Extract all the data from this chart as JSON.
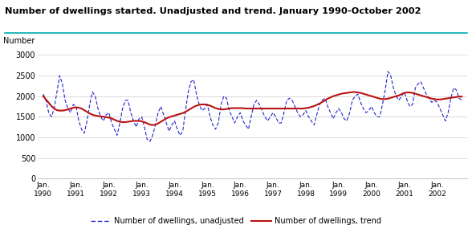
{
  "title": "Number of dwellings started. Unadjusted and trend. January 1990-October 2002",
  "ylabel": "Number",
  "ylim": [
    0,
    3000
  ],
  "yticks": [
    0,
    500,
    1000,
    1500,
    2000,
    2500,
    3000
  ],
  "xlabel_years": [
    "Jan.\n1990",
    "Jan.\n1991",
    "Jan.\n1992",
    "Jan.\n1993",
    "Jan.\n1994",
    "Jan.\n1995",
    "Jan.\n1996",
    "Jan.\n1997",
    "Jan.\n1998",
    "Jan.\n1999",
    "Jan.\n2000",
    "Jan.\n2001",
    "Jan.\n2002"
  ],
  "unadjusted_color": "#2222CC",
  "trend_color": "#BB1111",
  "legend_unadjusted": "Number of dwellings, unadjusted",
  "legend_trend": "Number of dwellings, trend",
  "background_color": "#ffffff",
  "grid_color": "#cccccc",
  "teal_line_color": "#00AAAA",
  "unadjusted": [
    2050,
    1900,
    1600,
    1500,
    1700,
    2100,
    2500,
    2300,
    1900,
    1700,
    1600,
    1800,
    1750,
    1400,
    1200,
    1100,
    1400,
    1800,
    2100,
    2000,
    1700,
    1500,
    1400,
    1550,
    1600,
    1350,
    1200,
    1050,
    1350,
    1700,
    1900,
    1900,
    1600,
    1400,
    1250,
    1450,
    1500,
    1250,
    950,
    900,
    1050,
    1300,
    1600,
    1750,
    1550,
    1350,
    1150,
    1300,
    1400,
    1200,
    1050,
    1150,
    1650,
    2100,
    2350,
    2400,
    2050,
    1800,
    1650,
    1700,
    1800,
    1500,
    1300,
    1200,
    1350,
    1800,
    2000,
    1950,
    1650,
    1500,
    1350,
    1500,
    1600,
    1400,
    1300,
    1200,
    1500,
    1800,
    1900,
    1800,
    1650,
    1500,
    1400,
    1500,
    1600,
    1500,
    1350,
    1350,
    1600,
    1900,
    1950,
    1900,
    1750,
    1600,
    1500,
    1550,
    1650,
    1500,
    1400,
    1300,
    1550,
    1800,
    1900,
    1950,
    1750,
    1600,
    1450,
    1600,
    1700,
    1600,
    1450,
    1400,
    1600,
    1900,
    2000,
    2050,
    1850,
    1700,
    1600,
    1650,
    1750,
    1600,
    1500,
    1500,
    1800,
    2150,
    2600,
    2500,
    2200,
    2000,
    1900,
    2000,
    2100,
    1900,
    1750,
    1800,
    2200,
    2300,
    2350,
    2200,
    2050,
    1950,
    1850,
    1900,
    1850,
    1700,
    1550,
    1400,
    1600,
    1950,
    2200,
    2150,
    1950,
    1900
  ],
  "trend": [
    2000,
    1920,
    1840,
    1760,
    1700,
    1660,
    1650,
    1650,
    1660,
    1680,
    1700,
    1720,
    1730,
    1720,
    1700,
    1660,
    1620,
    1580,
    1550,
    1530,
    1520,
    1510,
    1500,
    1490,
    1480,
    1460,
    1430,
    1400,
    1380,
    1370,
    1370,
    1380,
    1390,
    1400,
    1400,
    1400,
    1390,
    1370,
    1340,
    1310,
    1300,
    1310,
    1340,
    1380,
    1420,
    1460,
    1490,
    1510,
    1530,
    1550,
    1570,
    1590,
    1620,
    1660,
    1700,
    1740,
    1770,
    1790,
    1800,
    1800,
    1790,
    1770,
    1740,
    1710,
    1690,
    1680,
    1680,
    1690,
    1700,
    1710,
    1710,
    1710,
    1710,
    1710,
    1700,
    1700,
    1700,
    1700,
    1700,
    1700,
    1700,
    1700,
    1700,
    1700,
    1700,
    1700,
    1700,
    1700,
    1700,
    1700,
    1700,
    1700,
    1700,
    1700,
    1700,
    1700,
    1710,
    1720,
    1740,
    1760,
    1790,
    1820,
    1860,
    1900,
    1940,
    1970,
    2000,
    2020,
    2040,
    2060,
    2070,
    2080,
    2090,
    2100,
    2100,
    2090,
    2080,
    2060,
    2040,
    2020,
    2000,
    1980,
    1960,
    1940,
    1930,
    1930,
    1940,
    1960,
    1980,
    2000,
    2020,
    2050,
    2080,
    2090,
    2090,
    2080,
    2060,
    2040,
    2020,
    2000,
    1980,
    1960,
    1940,
    1930,
    1920,
    1920,
    1930,
    1940,
    1950,
    1960,
    1970,
    1980,
    1990,
    1990
  ]
}
